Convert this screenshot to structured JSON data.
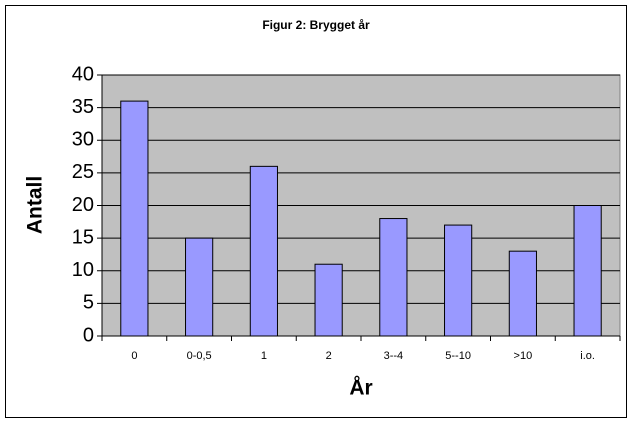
{
  "chart_data": {
    "type": "bar",
    "title": "Figur 2: Brygget år",
    "x_label": "År",
    "y_label": "Antall",
    "categories": [
      "0",
      "0-0,5",
      "1",
      "2",
      "3--4",
      "5--10",
      ">10",
      "i.o."
    ],
    "values": [
      36,
      15,
      26,
      11,
      18,
      17,
      13,
      20
    ],
    "color": "#9999ff",
    "ylim": [
      0,
      40
    ],
    "yticks": [
      0,
      5,
      10,
      15,
      20,
      25,
      30,
      35,
      40
    ],
    "grid": true
  }
}
